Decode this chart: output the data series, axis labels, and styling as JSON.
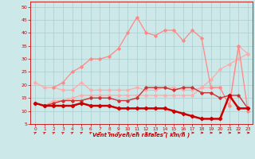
{
  "xlabel": "Vent moyen/en rafales ( km/h )",
  "xlim": [
    -0.5,
    23.5
  ],
  "ylim": [
    5,
    52
  ],
  "yticks": [
    5,
    10,
    15,
    20,
    25,
    30,
    35,
    40,
    45,
    50
  ],
  "xticks": [
    0,
    1,
    2,
    3,
    4,
    5,
    6,
    7,
    8,
    9,
    10,
    11,
    12,
    13,
    14,
    15,
    16,
    17,
    18,
    19,
    20,
    21,
    22,
    23
  ],
  "bg_color": "#cce8e8",
  "grid_color": "#aacece",
  "series": [
    {
      "x": [
        0,
        1,
        2,
        3,
        4,
        5,
        6,
        7,
        8,
        9,
        10,
        11,
        12,
        13,
        14,
        15,
        16,
        17,
        18,
        19,
        20,
        21,
        22,
        23
      ],
      "y": [
        21,
        19,
        19,
        18,
        18,
        21,
        18,
        18,
        18,
        18,
        18,
        19,
        18,
        18,
        19,
        19,
        18,
        18,
        19,
        19,
        19,
        12,
        35,
        32
      ],
      "color": "#ffaaaa",
      "lw": 0.9,
      "marker": "D",
      "ms": 1.8
    },
    {
      "x": [
        0,
        1,
        2,
        3,
        4,
        5,
        6,
        7,
        8,
        9,
        10,
        11,
        12,
        13,
        14,
        15,
        16,
        17,
        18,
        19,
        20,
        21,
        22,
        23
      ],
      "y": [
        13,
        12,
        14,
        14,
        15,
        16,
        16,
        16,
        16,
        16,
        16,
        16,
        16,
        16,
        16,
        16,
        16,
        16,
        19,
        22,
        26,
        28,
        30,
        32
      ],
      "color": "#ffaaaa",
      "lw": 0.9,
      "marker": "D",
      "ms": 1.8
    },
    {
      "x": [
        2,
        3,
        4,
        5,
        6,
        7,
        8,
        9,
        10,
        11,
        12,
        13,
        14,
        15,
        16,
        17,
        18,
        19,
        20,
        21,
        22,
        23
      ],
      "y": [
        19,
        21,
        25,
        27,
        30,
        30,
        31,
        34,
        40,
        46,
        40,
        39,
        41,
        41,
        37,
        41,
        38,
        19,
        19,
        12,
        35,
        10
      ],
      "color": "#ff8888",
      "lw": 0.9,
      "marker": "D",
      "ms": 1.8
    },
    {
      "x": [
        0,
        1,
        2,
        3,
        4,
        5,
        6,
        7,
        8,
        9,
        10,
        11,
        12,
        13,
        14,
        15,
        16,
        17,
        18,
        19,
        20,
        21,
        22,
        23
      ],
      "y": [
        13,
        12,
        13,
        14,
        14,
        14,
        15,
        15,
        15,
        14,
        14,
        15,
        19,
        19,
        19,
        18,
        19,
        19,
        17,
        17,
        15,
        16,
        16,
        11
      ],
      "color": "#cc3333",
      "lw": 1.0,
      "marker": "D",
      "ms": 1.8
    },
    {
      "x": [
        0,
        1,
        2,
        3,
        4,
        5,
        6,
        7,
        8,
        9,
        10,
        11,
        12,
        13,
        14,
        15,
        16,
        17,
        18,
        19,
        20,
        21,
        22,
        23
      ],
      "y": [
        13,
        12,
        12,
        12,
        12,
        13,
        12,
        12,
        12,
        11,
        11,
        11,
        11,
        11,
        11,
        10,
        9,
        8,
        7,
        7,
        7,
        16,
        11,
        11
      ],
      "color": "#cc0000",
      "lw": 1.8,
      "marker": "D",
      "ms": 2.2
    }
  ],
  "arrow_color": "#cc0000",
  "ne_count": 10,
  "total_arrows": 24
}
